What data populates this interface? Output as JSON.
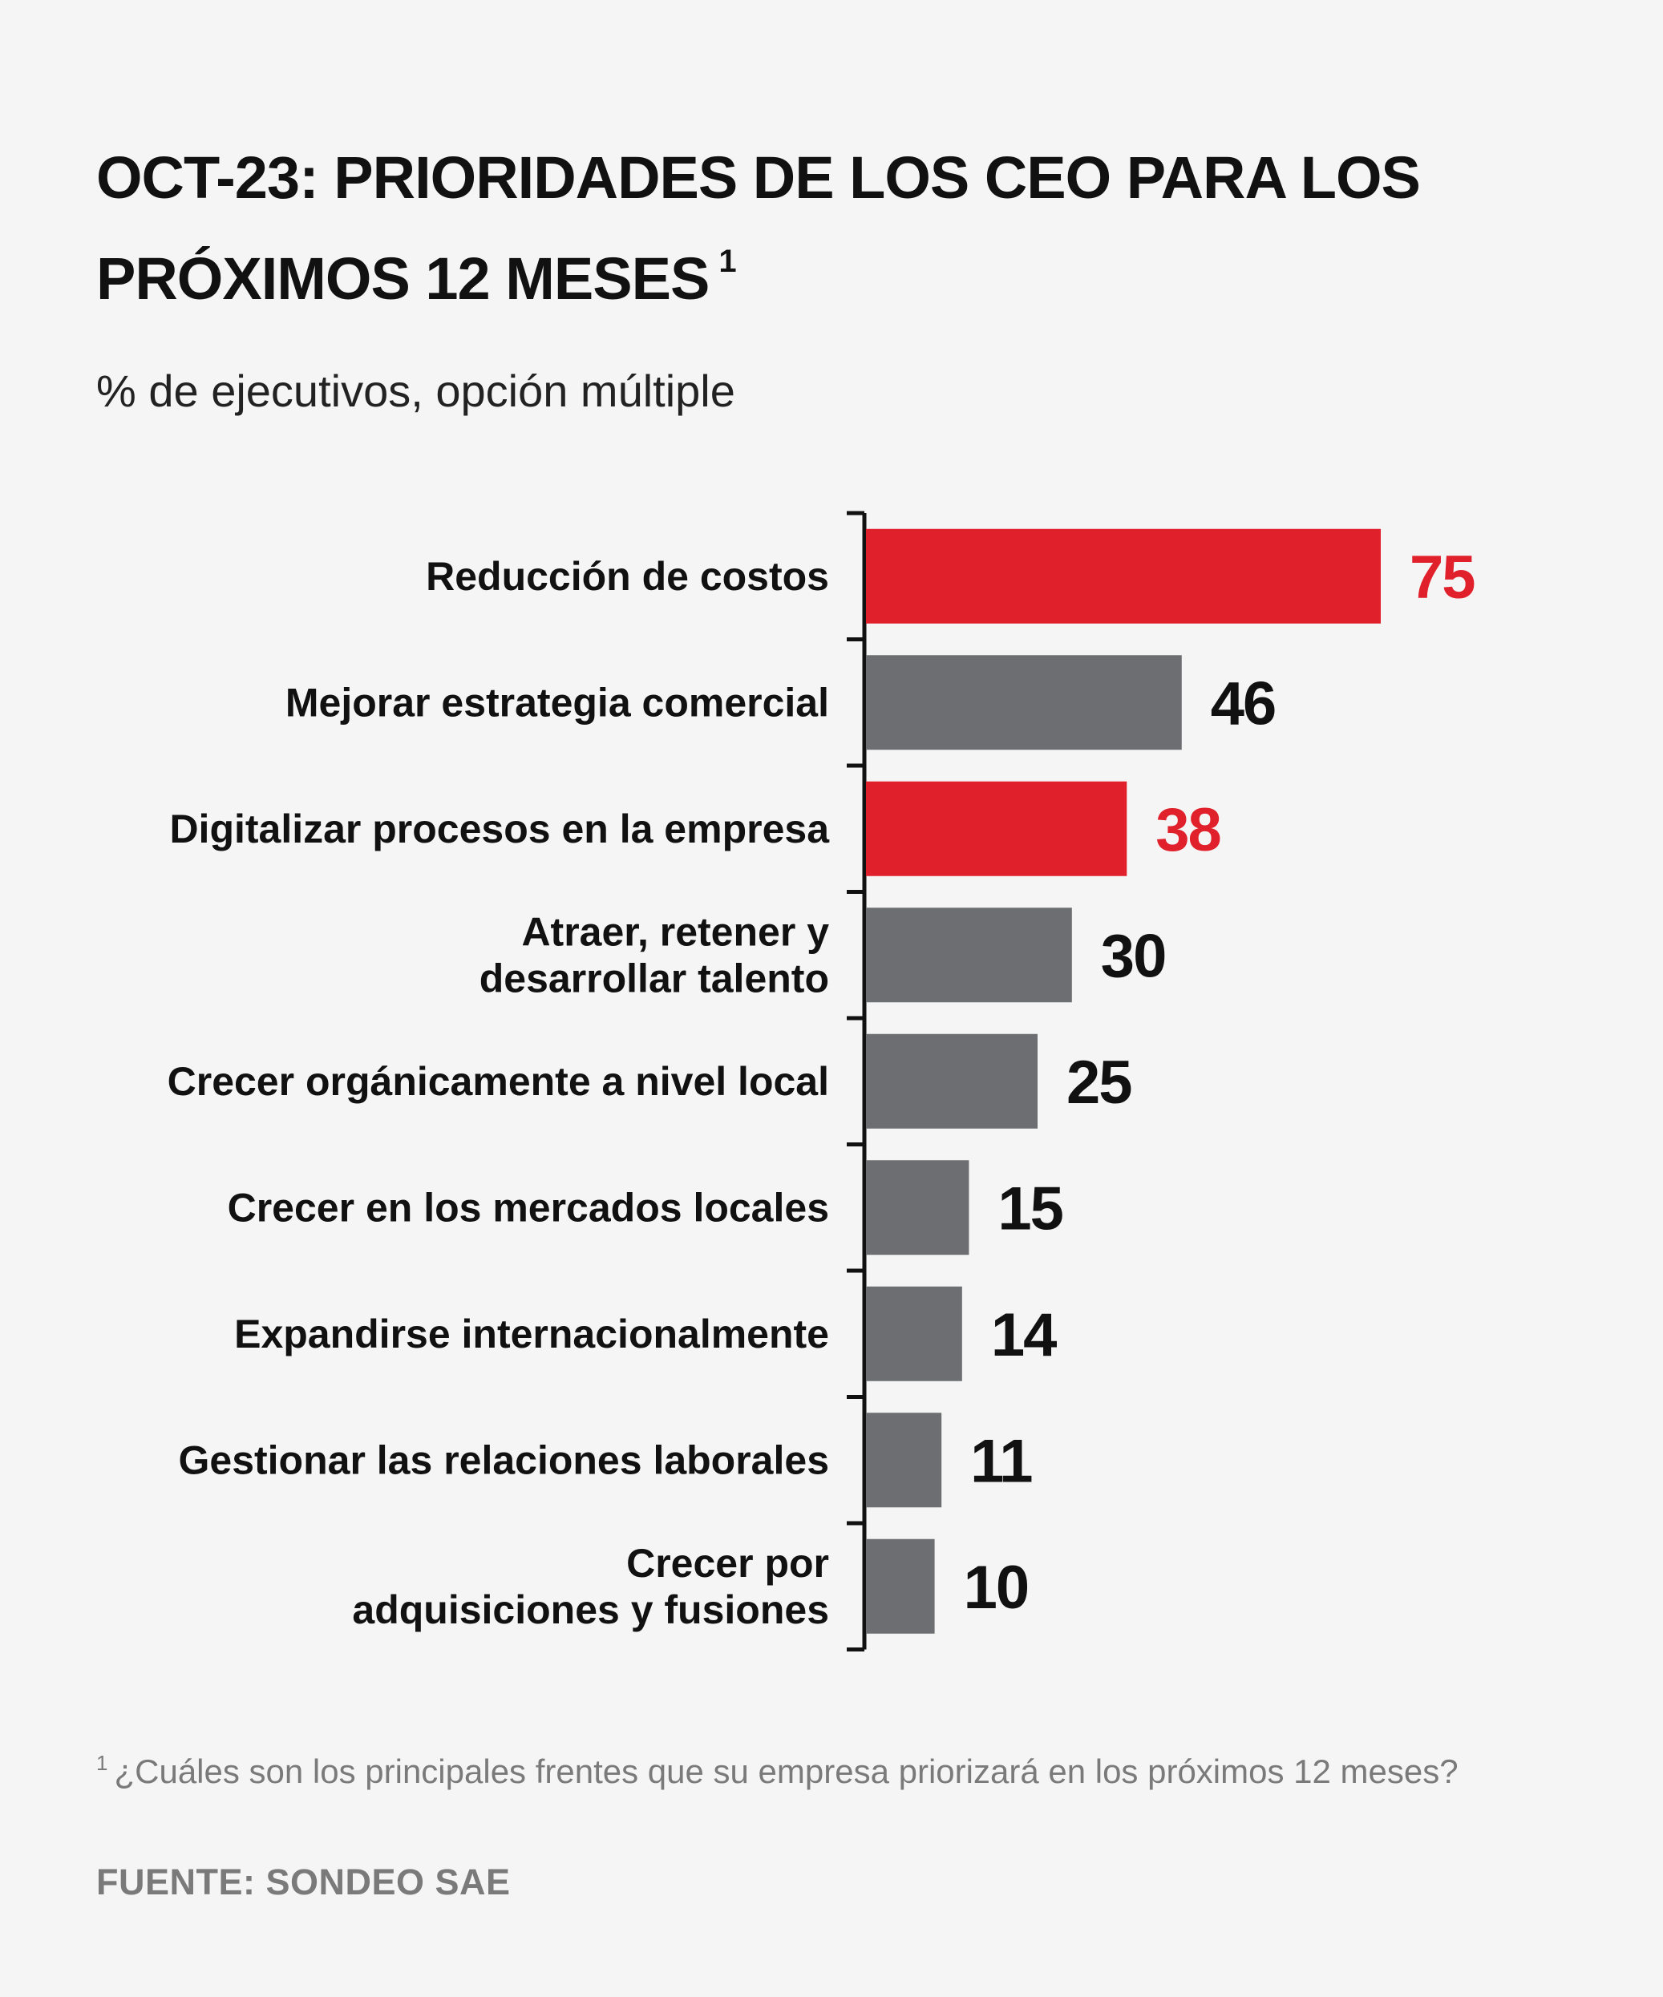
{
  "header": {
    "title": "OCT-23: PRIORIDADES DE LOS CEO PARA LOS PRÓXIMOS 12 MESES",
    "title_note": "1",
    "subtitle": "% de ejecutivos, opción múltiple"
  },
  "footer": {
    "footnote_mark": "1",
    "footnote": "¿Cuáles son los principales frentes que su empresa priorizará en los próximos 12 meses?",
    "source": "FUENTE: SONDEO SAE"
  },
  "colors": {
    "highlight": "#e0202a",
    "default_bar": "#6d6e71",
    "axis": "#111111",
    "value_text": "#111111",
    "background": "#f5f5f5"
  },
  "chart_data": {
    "type": "bar",
    "orientation": "horizontal",
    "categories": [
      [
        "Reducción de costos"
      ],
      [
        "Mejorar estrategia comercial"
      ],
      [
        "Digitalizar procesos en la empresa"
      ],
      [
        "Atraer, retener y",
        "desarrollar talento"
      ],
      [
        "Crecer orgánicamente a nivel local"
      ],
      [
        "Crecer en los mercados locales"
      ],
      [
        "Expandirse internacionalmente"
      ],
      [
        "Gestionar las relaciones laborales"
      ],
      [
        "Crecer por",
        "adquisiciones y fusiones"
      ]
    ],
    "values": [
      75,
      46,
      38,
      30,
      25,
      15,
      14,
      11,
      10
    ],
    "highlighted": [
      true,
      false,
      true,
      false,
      false,
      false,
      false,
      false,
      false
    ],
    "xlim": [
      0,
      100
    ],
    "grid": false,
    "data_labels": true
  }
}
